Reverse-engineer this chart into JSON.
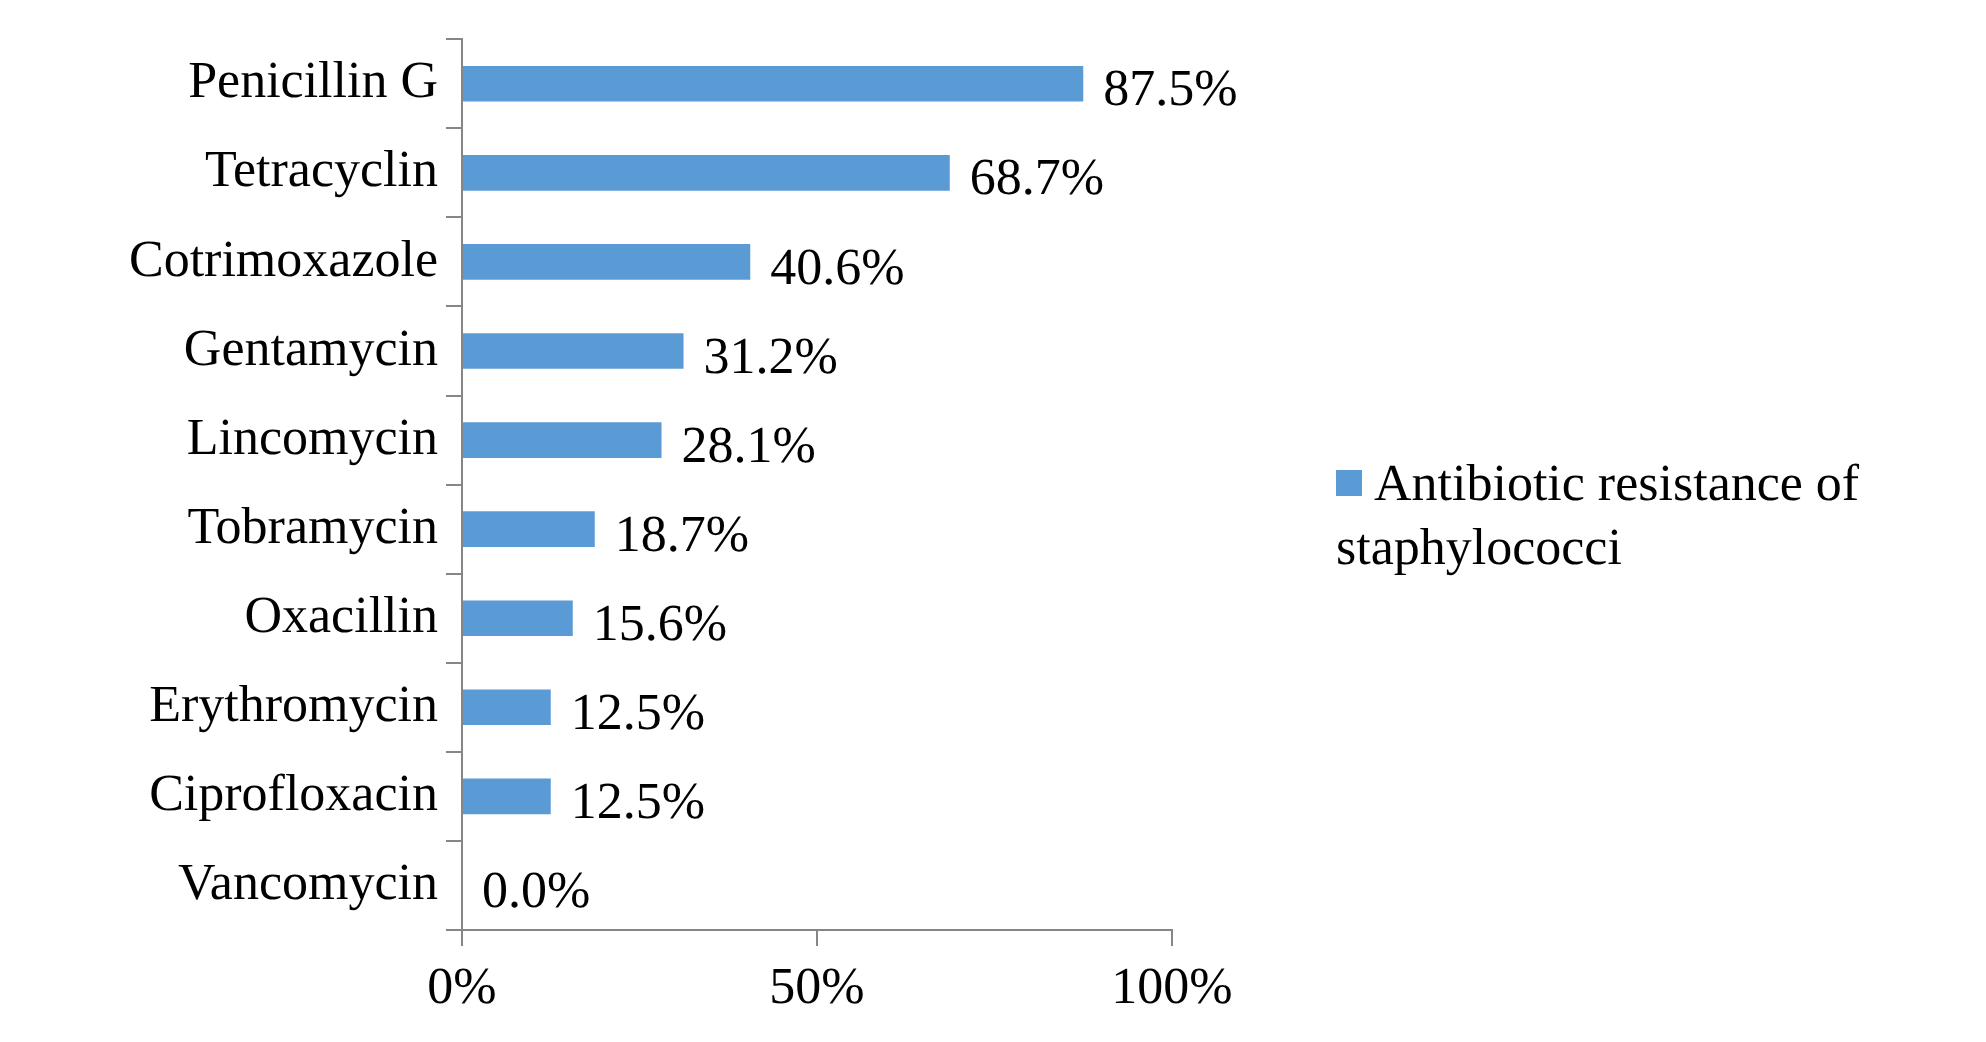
{
  "chart_data": {
    "type": "bar",
    "orientation": "horizontal",
    "categories": [
      "Penicillin G",
      "Tetracyclin",
      "Cotrimoxazole",
      "Gentamycin",
      "Lincomycin",
      "Tobramycin",
      "Oxacillin",
      "Erythromycin",
      "Ciprofloxacin",
      "Vancomycin"
    ],
    "series": [
      {
        "name": "Antibiotic resistance of staphylococci",
        "color": "#5b9bd5",
        "values": [
          87.5,
          68.7,
          40.6,
          31.2,
          28.1,
          18.7,
          15.6,
          12.5,
          12.5,
          0.0
        ],
        "value_labels": [
          "87.5%",
          "68.7%",
          "40.6%",
          "31.2%",
          "28.1%",
          "18.7%",
          "15.6%",
          "12.5%",
          "12.5%",
          "0.0%"
        ]
      }
    ],
    "xlim": [
      0,
      100
    ],
    "xticks": [
      {
        "value": 0,
        "label": "0%"
      },
      {
        "value": 50,
        "label": "50%"
      },
      {
        "value": 100,
        "label": "100%"
      }
    ],
    "grid": false,
    "legend": "right"
  }
}
